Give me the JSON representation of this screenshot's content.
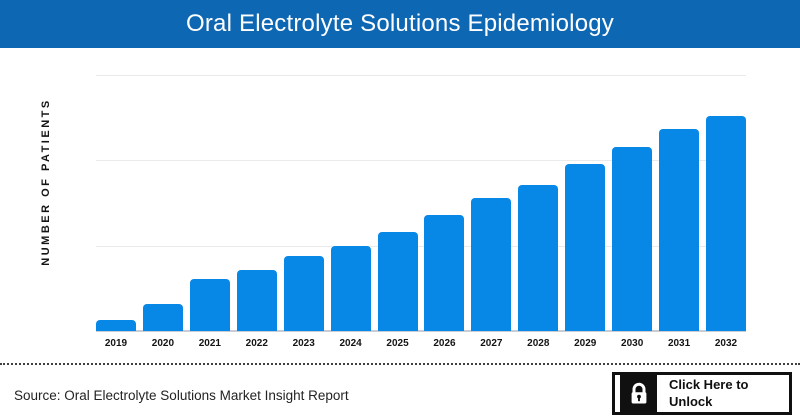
{
  "header": {
    "title": "Oral Electrolyte Solutions Epidemiology"
  },
  "chart_data": {
    "type": "bar",
    "title": "Oral Electrolyte Solutions Epidemiology",
    "categories": [
      "2019",
      "2020",
      "2021",
      "2022",
      "2023",
      "2024",
      "2025",
      "2026",
      "2027",
      "2028",
      "2029",
      "2030",
      "2031",
      "2032"
    ],
    "values": [
      4.3,
      10.5,
      20.3,
      23.8,
      29.3,
      33.2,
      38.7,
      45.3,
      52.0,
      57.0,
      65.2,
      71.9,
      78.9,
      84.0
    ],
    "xlabel": "",
    "ylabel": "NUMBER OF PATIENTS",
    "ylim": [
      0,
      100
    ],
    "y_tick_labels": [],
    "grid": true,
    "gridline_count": 3,
    "legend": false,
    "bar_color": "#0787e6",
    "note": "Y-axis has no numeric tick labels; values are estimated relative bar heights (percent of plot height)."
  },
  "footer": {
    "source_text": "Source: Oral Electrolyte Solutions Market Insight Report",
    "unlock_button": {
      "line1": "Click Here to",
      "line2": "Unlock",
      "icon": "lock"
    }
  },
  "colors": {
    "header_bg": "#0e67b3",
    "header_text": "#ffffff",
    "bar": "#0787e6",
    "gridline": "#e9eaec",
    "baseline": "#c9ccd2",
    "text": "#141414"
  }
}
